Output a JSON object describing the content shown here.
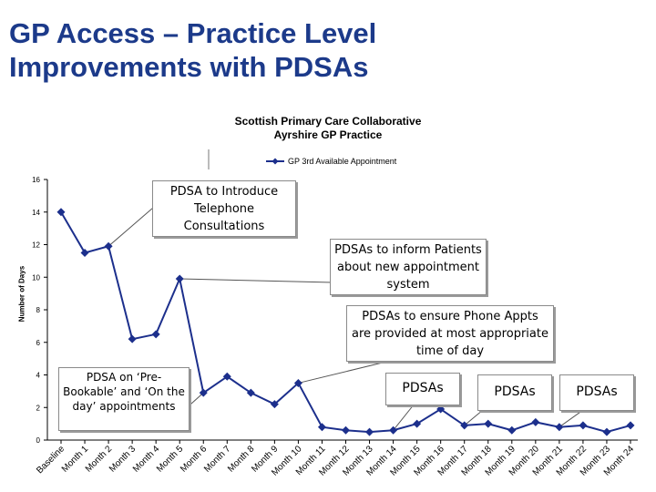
{
  "slide": {
    "title_line1": "GP Access – Practice Level",
    "title_line2": "Improvements with PDSAs"
  },
  "chart_data": {
    "type": "line",
    "title_line1": "Scottish Primary Care Collaborative",
    "title_line2": "Ayrshire GP Practice",
    "xlabel": "",
    "ylabel": "Number of Days",
    "ylim": [
      0,
      16
    ],
    "yticks": [
      0,
      2,
      4,
      6,
      8,
      10,
      12,
      14,
      16
    ],
    "categories": [
      "Baseline",
      "Month 1",
      "Month 2",
      "Month 3",
      "Month 4",
      "Month 5",
      "Month 6",
      "Month 7",
      "Month 8",
      "Month 9",
      "Month 10",
      "Month 11",
      "Month 12",
      "Month 13",
      "Month 14",
      "Month 15",
      "Month 16",
      "Month 17",
      "Month 18",
      "Month 19",
      "Month 20",
      "Month 21",
      "Month 22",
      "Month 23",
      "Month 24"
    ],
    "legend_position": "top",
    "grid": false,
    "series": [
      {
        "name": "GP 3rd Available Appointment",
        "color": "#1c2f8c",
        "values": [
          14.0,
          11.5,
          11.9,
          6.2,
          6.5,
          9.9,
          2.9,
          3.9,
          2.9,
          2.2,
          3.5,
          0.8,
          0.6,
          0.5,
          0.6,
          1.0,
          1.9,
          0.9,
          1.0,
          0.6,
          1.1,
          0.8,
          0.9,
          0.5,
          0.9
        ]
      }
    ],
    "annotations": [
      {
        "text": "PDSA to Introduce Telephone Consultations",
        "target": "Month 2"
      },
      {
        "text": "PDSAs to inform Patients about new appointment system",
        "target": "Month 5"
      },
      {
        "text": "PDSAs to ensure Phone Appts are provided at most appropriate time of day",
        "target": "Month 10"
      },
      {
        "text": "PDSA on ‘Pre-Bookable’ and ‘On the day’ appointments",
        "target": "Month 6"
      },
      {
        "text": "PDSAs",
        "target": "Month 14"
      },
      {
        "text": "PDSAs",
        "target": "Month 17"
      },
      {
        "text": "PDSAs",
        "target": "Month 21"
      }
    ]
  }
}
